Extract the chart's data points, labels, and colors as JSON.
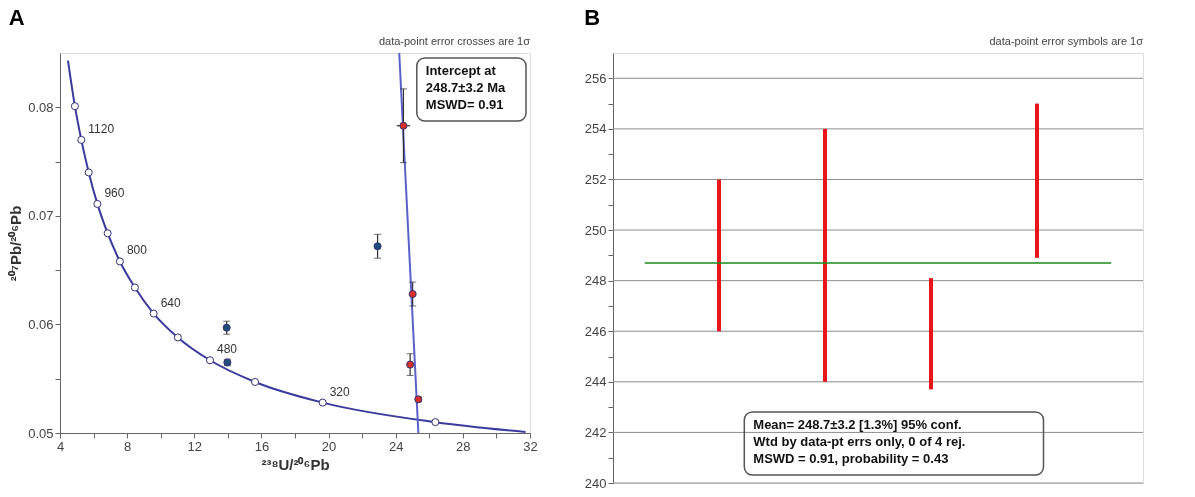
{
  "chart_data": [
    {
      "type": "scatter",
      "title": "A",
      "xlabel": "²³⁸U/²⁰⁶Pb",
      "ylabel": "²⁰⁷Pb/²⁰⁶Pb",
      "xlim": [
        4,
        32
      ],
      "ylim": [
        0.05,
        0.085
      ],
      "xticks": [
        4,
        {
          "value": 6,
          "label": null
        },
        8,
        {
          "value": 10,
          "label": null
        },
        12,
        {
          "value": 14,
          "label": null
        },
        16,
        {
          "value": 18,
          "label": null
        },
        20,
        {
          "value": 22,
          "label": null
        },
        24,
        {
          "value": 26,
          "label": null
        },
        28,
        {
          "value": 30,
          "label": null
        },
        32
      ],
      "yticks": [
        0.05,
        {
          "value": 0.055,
          "label": null
        },
        0.06,
        {
          "value": 0.065,
          "label": null
        },
        0.07,
        {
          "value": 0.075,
          "label": null
        },
        0.08
      ],
      "grid": false,
      "series": [
        {
          "type": "line",
          "color": "#3b3b9e",
          "marker": "none",
          "x": [
            4.476,
            4.888,
            5.27,
            5.712,
            6.227,
            6.837,
            7.568,
            8.463,
            9.581,
            11.019,
            12.936,
            15.621,
            19.649,
            26.363,
            31.735
          ],
          "values": [
            0.0843,
            0.0801,
            0.077,
            0.074,
            0.0711,
            0.0684,
            0.0658,
            0.0634,
            0.061,
            0.0588,
            0.0567,
            0.0547,
            0.0528,
            0.051,
            0.0501
          ]
        },
        {
          "type": "scatter",
          "color": "#ffffff",
          "marker": "circle",
          "x": [
            4.888,
            5.27,
            5.712,
            6.227,
            6.837,
            7.568,
            8.463,
            9.581,
            11.019,
            12.936,
            15.621,
            19.649,
            26.363
          ],
          "values": [
            0.0801,
            0.077,
            0.074,
            0.0711,
            0.0684,
            0.0658,
            0.0634,
            0.061,
            0.0588,
            0.0567,
            0.0547,
            0.0528,
            0.051
          ]
        },
        {
          "type": "line",
          "color": "#5a62c8",
          "marker": "none",
          "x": [
            24.21,
            25.35
          ],
          "values": [
            0.085,
            0.05
          ]
        },
        {
          "type": "scatter",
          "color": "#1f4e79",
          "marker": "circle",
          "x": [
            13.93,
            13.97,
            22.92
          ],
          "values": [
            0.0597,
            0.0565,
            0.0672
          ],
          "errors": [
            0.0006,
            0.0003,
            0.0011
          ]
        },
        {
          "type": "scatter",
          "color": "#d7302a",
          "marker": "circle",
          "x": [
            24.46,
            25.01,
            24.86,
            25.35
          ],
          "values": [
            0.0783,
            0.0628,
            0.0563,
            0.0531
          ],
          "errors": [
            0.0034,
            0.0011,
            0.001,
            0.0002
          ],
          "xerrors": [
            0.4,
            0.2,
            0.2,
            0.15
          ]
        }
      ],
      "annotations": [
        "data-point  error crosses are 1σ",
        "Intercept at\n248.7±3.2 Ma\nMSWD= 0.91",
        {
          "text": "1120",
          "x": 5.27,
          "y": 0.077
        },
        {
          "text": "960",
          "x": 6.227,
          "y": 0.0711
        },
        {
          "text": "800",
          "x": 7.568,
          "y": 0.0658
        },
        {
          "text": "640",
          "x": 9.581,
          "y": 0.061
        },
        {
          "text": "480",
          "x": 12.936,
          "y": 0.0567
        },
        {
          "text": "320",
          "x": 19.649,
          "y": 0.0528
        }
      ]
    },
    {
      "type": "bar",
      "title": "B",
      "categories": [
        null,
        null,
        null,
        null
      ],
      "base": [
        246.0,
        244.0,
        243.7,
        248.9
      ],
      "values": [
        6.0,
        10.0,
        4.4,
        6.1
      ],
      "color": "#e8161b",
      "ylim": [
        240,
        257
      ],
      "yticks": [
        240,
        {
          "value": 241,
          "label": null
        },
        242,
        {
          "value": 243,
          "label": null
        },
        244,
        {
          "value": 245,
          "label": null
        },
        246,
        {
          "value": 247,
          "label": null
        },
        248,
        {
          "value": 249,
          "label": null
        },
        250,
        {
          "value": 251,
          "label": null
        },
        252,
        {
          "value": 253,
          "label": null
        },
        254,
        {
          "value": 255,
          "label": null
        },
        256
      ],
      "grid": "y",
      "tick_labels": "y",
      "ref_lines": [
        {
          "axis": "y",
          "value": 248.7,
          "color": "#1a8c1a"
        }
      ],
      "annotations": [
        "data-point  error symbols are 1σ",
        "Mean= 248.7±3.2 [1.3%] 95% conf.\nWtd by data-pt errs only, 0 of 4 rej.\nMSWD = 0.91, probability = 0.43"
      ]
    }
  ]
}
